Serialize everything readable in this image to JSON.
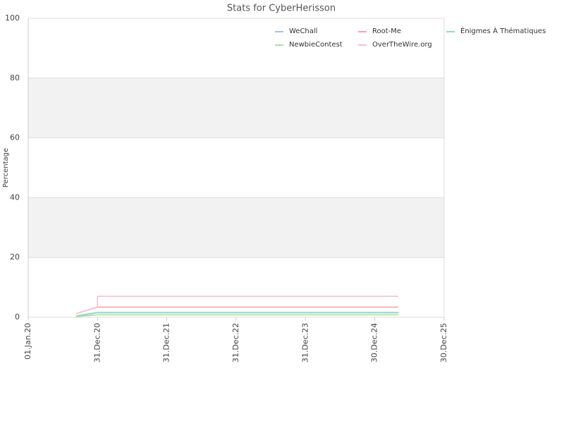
{
  "chart_data": {
    "type": "line",
    "title": "Stats for CyberHerisson",
    "y_label": "Percentage",
    "x": [
      "2020-09-09",
      "2020-12-30",
      "2020-12-31",
      "2025-05-03"
    ],
    "series": [
      {
        "name": "WeChall",
        "color": "#9fc2ea",
        "values": [
          0.3,
          1.5,
          1.5,
          1.5
        ]
      },
      {
        "name": "Root-Me",
        "color": "#f3a0b3",
        "values": [
          1.2,
          3.4,
          3.4,
          3.4
        ]
      },
      {
        "name": "Énigmes À Thématiques",
        "color": "#8fdcc4",
        "values": [
          0.5,
          1.6,
          1.6,
          1.6
        ]
      },
      {
        "name": "NewbieContest",
        "color": "#a9e4a3",
        "values": [
          0.2,
          0.8,
          0.8,
          0.8
        ]
      },
      {
        "name": "OverTheWire.org",
        "color": "#f7bfd2",
        "values": [
          1.2,
          3.3,
          7.0,
          7.0
        ]
      }
    ],
    "xlim": [
      "2020-01-01",
      "2025-12-30"
    ],
    "xticks": [
      {
        "value": "2020-01-01",
        "label": "01.Jan.20"
      },
      {
        "value": "2020-12-31",
        "label": "31.Dec.20"
      },
      {
        "value": "2021-12-31",
        "label": "31.Dec.21"
      },
      {
        "value": "2022-12-31",
        "label": "31.Dec.22"
      },
      {
        "value": "2023-12-31",
        "label": "31.Dec.23"
      },
      {
        "value": "2024-12-30",
        "label": "30.Dec.24"
      },
      {
        "value": "2025-12-30",
        "label": "30.Dec.25"
      }
    ],
    "ylim": [
      0,
      100
    ],
    "yticks": [
      0,
      20,
      40,
      60,
      80,
      100
    ],
    "bands": [
      [
        20,
        40
      ],
      [
        60,
        80
      ]
    ],
    "grid": true,
    "legend": "top-right"
  }
}
